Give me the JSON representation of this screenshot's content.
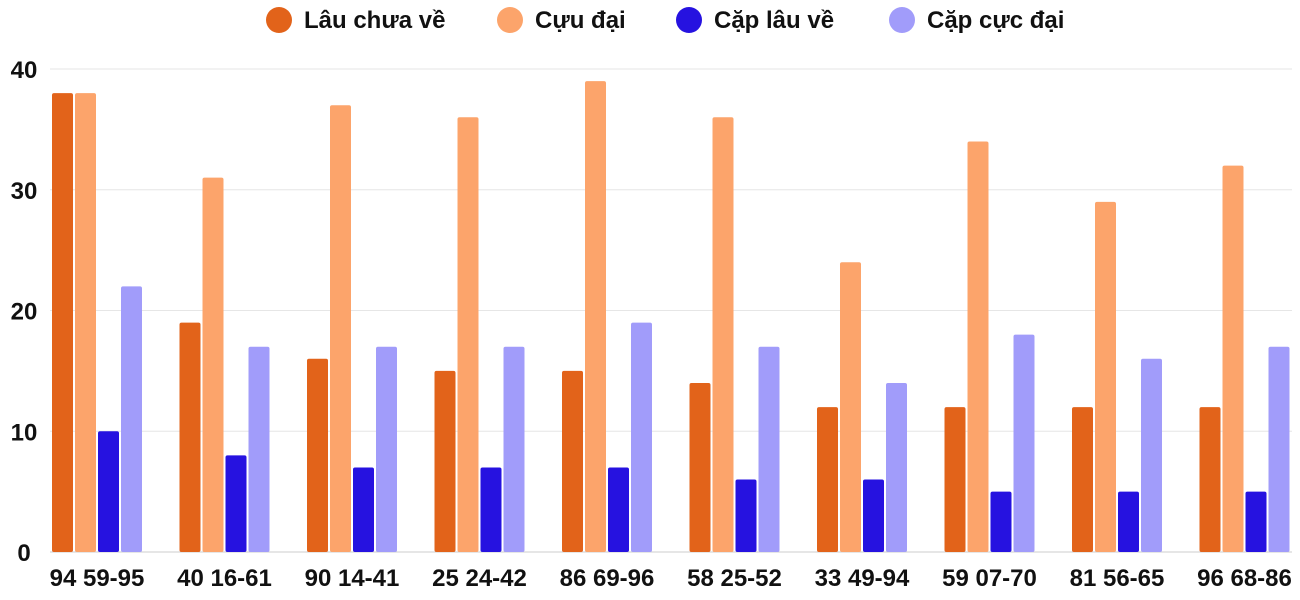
{
  "chart_data": {
    "type": "bar",
    "title": "",
    "xlabel": "",
    "ylabel": "",
    "categories": [
      "94 59-95",
      "40 16-61",
      "90 14-41",
      "25 24-42",
      "86 69-96",
      "58 25-52",
      "33 49-94",
      "59 07-70",
      "81 56-65",
      "96 68-86"
    ],
    "series": [
      {
        "name": "Lâu chưa về",
        "color": "#e2631a",
        "values": [
          38,
          19,
          16,
          15,
          15,
          14,
          12,
          12,
          12,
          12
        ]
      },
      {
        "name": "Cựu đại",
        "color": "#fca46b",
        "values": [
          38,
          31,
          37,
          36,
          39,
          36,
          24,
          34,
          29,
          32
        ]
      },
      {
        "name": "Cặp lâu về",
        "color": "#2612e0",
        "values": [
          10,
          8,
          7,
          7,
          7,
          6,
          6,
          5,
          5,
          5
        ]
      },
      {
        "name": "Cặp cực đại",
        "color": "#a19cfa",
        "values": [
          22,
          17,
          17,
          17,
          19,
          17,
          14,
          18,
          16,
          17
        ]
      }
    ],
    "ylim": [
      0,
      40
    ],
    "yticks": [
      0,
      10,
      20,
      30,
      40
    ],
    "grid": true,
    "legend_position": "top-center"
  }
}
